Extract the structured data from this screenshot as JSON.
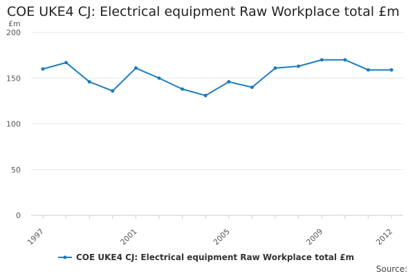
{
  "chart_data": {
    "type": "line",
    "title": "COE UKE4 CJ: Electrical equipment Raw Workplace total £m",
    "ylabel": "£m",
    "xlabel": "",
    "ylim": [
      0,
      200
    ],
    "yticks": [
      0,
      50,
      100,
      150,
      200
    ],
    "xticks": [
      1997,
      2001,
      2005,
      2009,
      2012
    ],
    "grid": true,
    "legend_position": "bottom",
    "color": "#1a7bbf",
    "series": [
      {
        "name": "COE UKE4 CJ: Electrical equipment Raw Workplace total £m",
        "x": [
          1997,
          1998,
          1999,
          2000,
          2001,
          2002,
          2003,
          2004,
          2005,
          2006,
          2007,
          2008,
          2009,
          2010,
          2011,
          2012
        ],
        "values": [
          160,
          167,
          146,
          136,
          161,
          150,
          138,
          131,
          146,
          140,
          161,
          163,
          170,
          170,
          159,
          159
        ]
      }
    ]
  },
  "footer": {
    "source_label": "Source:"
  }
}
